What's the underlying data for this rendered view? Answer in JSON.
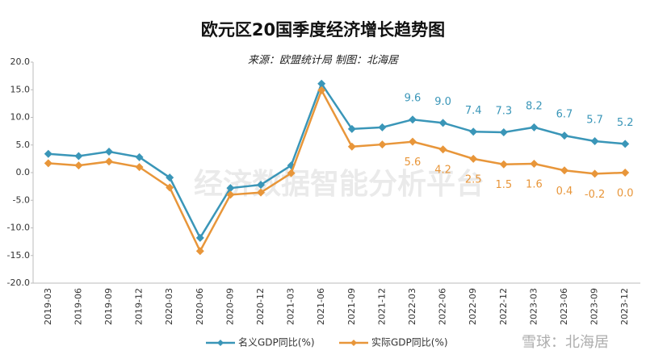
{
  "chart_data": {
    "type": "line",
    "title": "欧元区20国季度经济增长趋势图",
    "subtitle": "来源：欧盟统计局 制图：北海居",
    "watermarks": [
      "经济数据智能分析平台",
      "雪球：北海居"
    ],
    "categories": [
      "2019-03",
      "2019-06",
      "2019-09",
      "2019-12",
      "2020-03",
      "2020-06",
      "2020-09",
      "2020-12",
      "2021-03",
      "2021-06",
      "2021-09",
      "2021-12",
      "2022-03",
      "2022-06",
      "2022-09",
      "2022-12",
      "2023-03",
      "2023-06",
      "2023-09",
      "2023-12"
    ],
    "series": [
      {
        "name": "名义GDP同比(%)",
        "color": "#3a96b8",
        "values": [
          3.4,
          3.0,
          3.8,
          2.8,
          -0.9,
          -11.8,
          -2.8,
          -2.2,
          1.3,
          16.1,
          7.9,
          8.2,
          9.6,
          9.0,
          7.4,
          7.3,
          8.2,
          6.7,
          5.7,
          5.2
        ],
        "value_labels": [
          null,
          null,
          null,
          null,
          null,
          null,
          null,
          null,
          null,
          null,
          null,
          null,
          "9.6",
          "9.0",
          "7.4",
          "7.3",
          "8.2",
          "6.7",
          "5.7",
          "5.2"
        ]
      },
      {
        "name": "实际GDP同比(%)",
        "color": "#e8963a",
        "values": [
          1.7,
          1.3,
          2.0,
          1.0,
          -2.7,
          -14.2,
          -4.0,
          -3.6,
          -0.1,
          14.9,
          4.7,
          5.1,
          5.6,
          4.2,
          2.5,
          1.5,
          1.6,
          0.4,
          -0.2,
          0.0
        ],
        "value_labels": [
          null,
          null,
          null,
          null,
          null,
          null,
          null,
          null,
          null,
          null,
          null,
          null,
          "5.6",
          "4.2",
          "2.5",
          "1.5",
          "1.6",
          "0.4",
          "-0.2",
          "0.0"
        ]
      }
    ],
    "ylim": [
      -20,
      20
    ],
    "yticks": [
      {
        "value": 20,
        "label": "20.0"
      },
      {
        "value": 15,
        "label": "15.0"
      },
      {
        "value": 10,
        "label": "10.0"
      },
      {
        "value": 5,
        "label": "5.0"
      },
      {
        "value": 0,
        "label": "0.0"
      },
      {
        "value": -5,
        "label": "-5.0"
      },
      {
        "value": -10,
        "label": "-10.0"
      },
      {
        "value": -15,
        "label": "-15.0"
      },
      {
        "value": -20,
        "label": "-20.0"
      }
    ]
  }
}
